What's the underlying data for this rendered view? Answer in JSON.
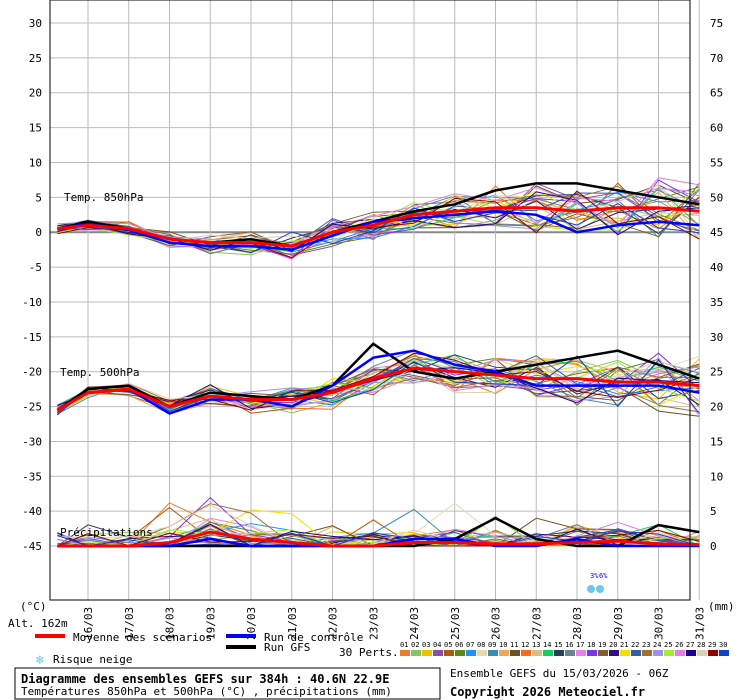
{
  "chart_data": {
    "type": "line",
    "title": "Diagramme des ensembles GEFS sur 384h : 40.6N 22.9E",
    "subtitle": "Températures 850hPa et 500hPa (°C) , précipitations (mm)",
    "run_info": "Ensemble GEFS du 15/03/2026 - 06Z",
    "copyright": "Copyright 2026 Meteociel.fr",
    "left_axis": {
      "unit": "(°C)",
      "range": [
        -45,
        30
      ],
      "ticks": [
        "30",
        "25",
        "20",
        "15",
        "10",
        "5",
        "0",
        "-5",
        "-10",
        "-15",
        "-20",
        "-25",
        "-30",
        "-35",
        "-40",
        "-45"
      ]
    },
    "right_axis": {
      "unit": "(mm)",
      "range": [
        0,
        75
      ],
      "ticks": [
        "75",
        "70",
        "65",
        "60",
        "55",
        "50",
        "45",
        "40",
        "35",
        "30",
        "25",
        "20",
        "15",
        "10",
        "5",
        "0"
      ]
    },
    "x_ticks": [
      "16/03",
      "17/03",
      "18/03",
      "19/03",
      "20/03",
      "21/03",
      "22/03",
      "23/03",
      "24/03",
      "25/03",
      "26/03",
      "27/03",
      "28/03",
      "29/03",
      "30/03",
      "31/03"
    ],
    "altitude": "Alt. 162m",
    "labels": {
      "t850": "Temp. 850hPa",
      "t500": "Temp. 500hPa",
      "precip": "Précipitations"
    },
    "x_days": [
      15.25,
      16,
      17,
      18,
      19,
      20,
      21,
      22,
      23,
      24,
      25,
      26,
      27,
      28,
      29,
      30,
      31
    ],
    "series": [
      {
        "name": "Moyenne des scénarios",
        "color": "#ff0000",
        "t850": [
          0.5,
          1,
          0.5,
          -1,
          -1.5,
          -1.5,
          -2,
          0,
          1,
          2.5,
          3,
          3.5,
          3.5,
          3,
          3.5,
          3.5,
          3
        ],
        "t500": [
          -25.5,
          -23,
          -22.5,
          -25,
          -23.5,
          -24,
          -24,
          -23,
          -21,
          -19.5,
          -20,
          -20.5,
          -21,
          -21,
          -21.5,
          -21.5,
          -22
        ],
        "precip": [
          0,
          0,
          0,
          0.5,
          2,
          1,
          0.5,
          0,
          0,
          0.5,
          0.5,
          0.3,
          0.3,
          0.5,
          0.7,
          0.3,
          0.2
        ]
      },
      {
        "name": "Run de contrôle",
        "color": "#0000ff",
        "t850": [
          0.5,
          1.2,
          0.3,
          -1.5,
          -2,
          -2,
          -2.5,
          -0.5,
          1.5,
          2,
          2.5,
          3,
          2.5,
          0,
          1,
          1.5,
          1
        ],
        "t500": [
          -25.5,
          -23,
          -22.5,
          -26,
          -24,
          -24,
          -25,
          -22,
          -18,
          -17,
          -19,
          -20,
          -22,
          -22,
          -22,
          -22,
          -23
        ],
        "precip": [
          0,
          0,
          0,
          0,
          1,
          0,
          0,
          0,
          0,
          1,
          1,
          0,
          0,
          1,
          0,
          0,
          0
        ]
      },
      {
        "name": "Run GFS",
        "color": "#000000",
        "t850": [
          0.5,
          1.5,
          0.5,
          -1,
          -1.5,
          -1,
          -2,
          0,
          1.5,
          3,
          4,
          6,
          7,
          7,
          6,
          5,
          4
        ],
        "t500": [
          -25.5,
          -22.5,
          -22,
          -25,
          -23,
          -23.5,
          -24,
          -22,
          -16,
          -20,
          -21,
          -20,
          -19,
          -18,
          -17,
          -19,
          -21
        ],
        "precip": [
          0,
          0,
          0,
          0,
          0,
          0,
          0,
          0,
          0,
          0,
          1,
          4,
          1,
          0,
          0,
          3,
          2
        ]
      }
    ],
    "legend": {
      "mean": "Moyenne des scénarios",
      "control": "Run de contrôle",
      "gfs": "Run GFS",
      "snow": "Risque neige",
      "perts": "30 Perts."
    },
    "snow_risk": [
      "3%",
      "6%"
    ],
    "perturbations": {
      "labels": [
        "01",
        "02",
        "03",
        "04",
        "05",
        "06",
        "07",
        "08",
        "09",
        "10",
        "11",
        "12",
        "13",
        "14",
        "15",
        "16",
        "17",
        "18",
        "19",
        "20",
        "21",
        "22",
        "23",
        "24",
        "25",
        "26",
        "27",
        "28",
        "29",
        "30"
      ],
      "colors": [
        "#e87d2e",
        "#86c465",
        "#f0c000",
        "#8b4ea8",
        "#b05a10",
        "#5e8a10",
        "#1e90ff",
        "#e8d8b0",
        "#3a8ab8",
        "#e8a860",
        "#705020",
        "#ff6820",
        "#d8c080",
        "#10d060",
        "#204060",
        "#708090",
        "#e880f0",
        "#8030f0",
        "#806030",
        "#301080",
        "#f0e000",
        "#3060a0",
        "#a07030",
        "#a090f0",
        "#a0f030",
        "#e080e0",
        "#200090",
        "#e0d0b0",
        "#900000",
        "#1040c0"
      ]
    }
  }
}
